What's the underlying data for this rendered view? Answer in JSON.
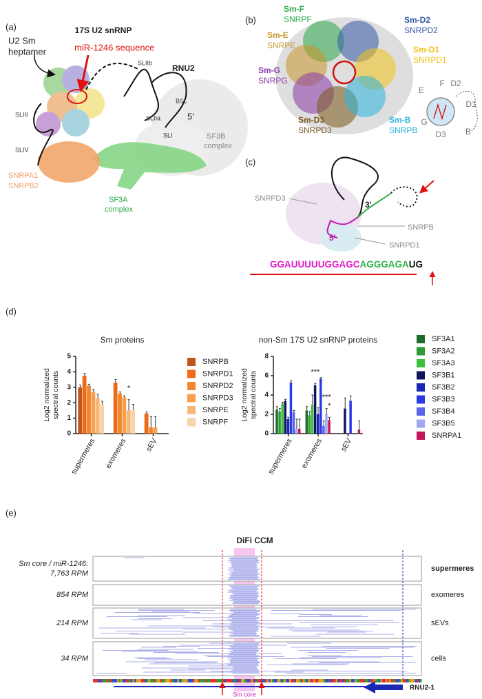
{
  "panel_a": {
    "label": "(a)",
    "title": "17S U2 snRNP",
    "heptamer": [
      "U2 Sm",
      "heptamer"
    ],
    "mir": "miR-1246 sequence",
    "rnu2": "RNU2",
    "sliib": "SLIIb",
    "sliii": "SLIII",
    "sliia": "SLIIa",
    "bsl": "BSL",
    "five": "5'",
    "sli": "SLI",
    "sliv": "SLIV",
    "sf3b": [
      "SF3B",
      "complex"
    ],
    "snrpa": [
      "SNRPA1",
      "SNRPB2"
    ],
    "sf3a": [
      "SF3A",
      "complex"
    ]
  },
  "panel_b": {
    "label": "(b)",
    "proteins": [
      {
        "sm": "Sm-F",
        "gene": "SNRPF",
        "color": "#2aa84a"
      },
      {
        "sm": "Sm-D2",
        "gene": "SNRPD2",
        "color": "#3558a8"
      },
      {
        "sm": "Sm-E",
        "gene": "SNRPE",
        "color": "#c8962a"
      },
      {
        "sm": "Sm-D1",
        "gene": "SNRPD1",
        "color": "#f0c419"
      },
      {
        "sm": "Sm-G",
        "gene": "SNRPG",
        "color": "#8a3aa8"
      },
      {
        "sm": "Sm-D3",
        "gene": "SNRPD3",
        "color": "#7a5a1a"
      },
      {
        "sm": "Sm-B",
        "gene": "SNRPB",
        "color": "#2cb4dc"
      }
    ],
    "ring": [
      "E",
      "F",
      "D2",
      "D1",
      "B",
      "D3",
      "G"
    ]
  },
  "panel_c": {
    "label": "(c)",
    "snrpd3": "SNRPD3",
    "three": "3'",
    "snrpb": "SNRPB",
    "five": "5'",
    "snrpd1": "SNRPD1",
    "sequence": [
      "GGAUUUUUGGAGC",
      "AGGGAGA",
      "UG"
    ]
  },
  "panel_d": {
    "label": "(d)"
  },
  "chart_data": [
    {
      "type": "bar",
      "title": "Sm proteins",
      "y_label": [
        "Log2 normalized",
        "spectral counts"
      ],
      "categories": [
        "supermeres",
        "exomeres",
        "sEV"
      ],
      "ylim": [
        0,
        5
      ],
      "yticks": [
        0,
        1,
        2,
        3,
        4,
        5
      ],
      "series": [
        {
          "name": "SNRPB",
          "color": "#c0561c",
          "values": [
            3.0,
            0,
            null
          ],
          "errors": [
            0.15,
            0,
            null
          ]
        },
        {
          "name": "SNRPD1",
          "color": "#ee6a16",
          "values": [
            3.75,
            3.3,
            1.3
          ],
          "errors": [
            0.15,
            0.2,
            0.1
          ]
        },
        {
          "name": "SNRPD2",
          "color": "#f2862e",
          "values": [
            3.1,
            2.6,
            0.4
          ],
          "errors": [
            0.1,
            0.1,
            0.7
          ]
        },
        {
          "name": "SNRPD3",
          "color": "#f4a04e",
          "values": [
            2.7,
            2.35,
            0.4
          ],
          "errors": [
            0.15,
            0.1,
            0.7
          ]
        },
        {
          "name": "SNRPE",
          "color": "#f6b877",
          "values": [
            2.3,
            1.5,
            null
          ],
          "errors": [
            0.25,
            0.7,
            null
          ]
        },
        {
          "name": "SNRPF",
          "color": "#f8d3a8",
          "values": [
            1.9,
            1.55,
            null
          ],
          "errors": [
            0.2,
            0.35,
            null
          ]
        }
      ],
      "annotations": [
        {
          "text": "*",
          "category": "exomeres",
          "series": "SNRPE"
        }
      ]
    },
    {
      "type": "bar",
      "title": "non-Sm 17S U2 snRNP proteins",
      "y_label": [
        "Log2 normalized",
        "spectral counts"
      ],
      "categories": [
        "supermeres",
        "exomeres",
        "sEV"
      ],
      "ylim": [
        0,
        8
      ],
      "yticks": [
        0,
        2,
        4,
        6,
        8
      ],
      "series": [
        {
          "name": "SF3A1",
          "color": "#1f6b2a",
          "values": [
            2.5,
            2.4,
            null
          ],
          "errors": [
            0.3,
            0.4,
            null
          ]
        },
        {
          "name": "SF3A2",
          "color": "#2c9a35",
          "values": [
            2.3,
            1.9,
            null
          ],
          "errors": [
            0.3,
            0.4,
            null
          ]
        },
        {
          "name": "SF3A3",
          "color": "#3cc03c",
          "values": [
            3.1,
            3.0,
            null
          ],
          "errors": [
            0.15,
            1.0,
            null
          ]
        },
        {
          "name": "SF3B1",
          "color": "#14145e",
          "values": [
            3.4,
            5.0,
            2.6
          ],
          "errors": [
            0.15,
            0.2,
            1.1
          ]
        },
        {
          "name": "SF3B2",
          "color": "#1a28b4",
          "values": [
            1.5,
            2.0,
            null
          ],
          "errors": [
            0.2,
            0.7,
            null
          ]
        },
        {
          "name": "SF3B3",
          "color": "#2a3ae6",
          "values": [
            5.3,
            5.7,
            3.4
          ],
          "errors": [
            0.2,
            0.1,
            0.5
          ]
        },
        {
          "name": "SF3B4",
          "color": "#5a64e8",
          "values": [
            2.2,
            0.8,
            null
          ],
          "errors": [
            0.2,
            0.5,
            null
          ]
        },
        {
          "name": "SF3B5",
          "color": "#a0a6f0",
          "values": [
            0.5,
            2.0,
            null
          ],
          "errors": [
            1.0,
            0.6,
            null
          ]
        },
        {
          "name": "SNRPA1",
          "color": "#c4165c",
          "values": [
            0.5,
            1.4,
            0.4
          ],
          "errors": [
            1.0,
            0.3,
            0.9
          ]
        }
      ],
      "annotations": [
        {
          "text": "***",
          "category": "exomeres",
          "series": "SF3B1"
        },
        {
          "text": "***",
          "category": "exomeres",
          "series": "SF3B5"
        },
        {
          "text": "*",
          "category": "exomeres",
          "series": "SNRPA1"
        }
      ]
    }
  ],
  "panel_e": {
    "label": "(e)",
    "title": "DiFi CCM",
    "tracks": [
      {
        "left": [
          "Sm core / miR-1246:",
          "7,763 RPM"
        ],
        "right": "supermeres"
      },
      {
        "left": [
          "854 RPM"
        ],
        "right": "exomeres"
      },
      {
        "left": [
          "214 RPM"
        ],
        "right": "sEVs"
      },
      {
        "left": [
          "34 RPM"
        ],
        "right": "cells"
      }
    ],
    "gene": "RNU2-1",
    "core": "Sm core"
  }
}
